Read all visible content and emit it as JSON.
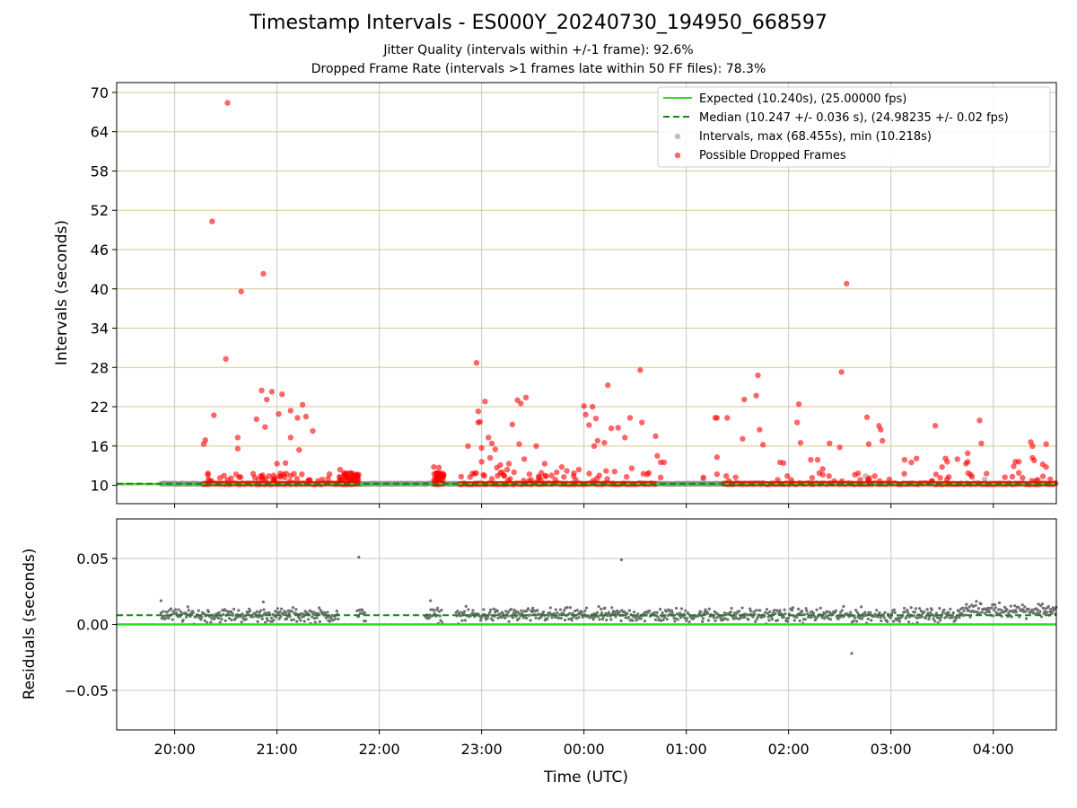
{
  "title": "Timestamp Intervals - ES000Y_20240730_194950_668597",
  "subtitle_lines": [
    "Jitter Quality (intervals within +/-1 frame): 92.6%",
    "Dropped Frame Rate (intervals >1 frames late within 50 FF files): 78.3%"
  ],
  "colors": {
    "expected": "#22dd22",
    "median": "#118811",
    "intervals": "#8a8a8a",
    "dropped": "#ff0000",
    "hgrid_top": "#d8c690",
    "grid": "#c8c8c8"
  },
  "chart_data": [
    {
      "type": "scatter",
      "name": "intervals",
      "ylabel": "Intervals (seconds)",
      "xlim": [
        "19:26",
        "04:37"
      ],
      "ylim": [
        7.2,
        71.5
      ],
      "yticks": [
        10,
        16,
        22,
        28,
        34,
        40,
        46,
        52,
        58,
        64,
        70
      ],
      "ytick_labels": [
        "10",
        "16",
        "22",
        "28",
        "34",
        "40",
        "46",
        "52",
        "58",
        "64",
        "70"
      ],
      "xticks": [
        "20:00",
        "21:00",
        "22:00",
        "23:00",
        "00:00",
        "01:00",
        "02:00",
        "03:00",
        "04:00"
      ],
      "grid": true,
      "legend_position": "top-right",
      "legend": [
        "Expected (10.240s), (25.00000 fps)",
        "Median (10.247 +/- 0.036 s), (24.98235 +/- 0.02 fps)",
        "Intervals, max (68.455s), min (10.218s)",
        "Possible Dropped Frames"
      ],
      "expected_interval": 10.24,
      "median_interval": 10.247,
      "baseline_intervals": [
        {
          "from": "19:52",
          "to": "20:18"
        },
        {
          "from": "21:34",
          "to": "22:27"
        },
        {
          "from": "22:27",
          "to": "22:50"
        },
        {
          "from": "00:42",
          "to": "01:18"
        },
        {
          "from": "01:18",
          "to": "01:30"
        }
      ],
      "dropped_baseline": [
        {
          "from": "20:17",
          "to": "21:36"
        },
        {
          "from": "21:36",
          "to": "21:48"
        },
        {
          "from": "22:32",
          "to": "22:38"
        },
        {
          "from": "22:47",
          "to": "00:42"
        },
        {
          "from": "01:22",
          "to": "04:37"
        }
      ],
      "interval_points": [
        {
          "x": "01:10",
          "y": 11.0
        },
        {
          "x": "02:45",
          "y": 11.4
        },
        {
          "x": "03:55",
          "y": 10.9
        }
      ],
      "dropped_points": [
        {
          "x": "20:17",
          "y": 16.3
        },
        {
          "x": "20:18",
          "y": 16.9
        },
        {
          "x": "20:22",
          "y": 50.3
        },
        {
          "x": "20:23",
          "y": 20.7
        },
        {
          "x": "20:31",
          "y": 68.4
        },
        {
          "x": "20:30",
          "y": 29.3
        },
        {
          "x": "20:37",
          "y": 15.6
        },
        {
          "x": "20:37",
          "y": 17.3
        },
        {
          "x": "20:39",
          "y": 39.6
        },
        {
          "x": "20:47",
          "y": 11.2
        },
        {
          "x": "20:48",
          "y": 20.1
        },
        {
          "x": "20:51",
          "y": 24.5
        },
        {
          "x": "20:52",
          "y": 42.3
        },
        {
          "x": "20:53",
          "y": 18.9
        },
        {
          "x": "20:54",
          "y": 23.1
        },
        {
          "x": "20:57",
          "y": 24.3
        },
        {
          "x": "20:58",
          "y": 11.5
        },
        {
          "x": "21:00",
          "y": 13.3
        },
        {
          "x": "21:01",
          "y": 20.9
        },
        {
          "x": "21:02",
          "y": 11.8
        },
        {
          "x": "21:03",
          "y": 23.9
        },
        {
          "x": "21:05",
          "y": 13.4
        },
        {
          "x": "21:08",
          "y": 21.4
        },
        {
          "x": "21:08",
          "y": 17.3
        },
        {
          "x": "21:12",
          "y": 20.3
        },
        {
          "x": "21:15",
          "y": 22.3
        },
        {
          "x": "21:17",
          "y": 20.5
        },
        {
          "x": "21:13",
          "y": 15.4
        },
        {
          "x": "21:21",
          "y": 18.3
        },
        {
          "x": "21:37",
          "y": 12.4
        },
        {
          "x": "22:32",
          "y": 12.8
        },
        {
          "x": "22:35",
          "y": 12.7
        },
        {
          "x": "22:52",
          "y": 16.0
        },
        {
          "x": "22:57",
          "y": 28.7
        },
        {
          "x": "22:58",
          "y": 21.3
        },
        {
          "x": "22:58",
          "y": 19.6
        },
        {
          "x": "22:59",
          "y": 19.7
        },
        {
          "x": "23:00",
          "y": 15.7
        },
        {
          "x": "23:00",
          "y": 13.6
        },
        {
          "x": "23:01",
          "y": 11.6
        },
        {
          "x": "23:02",
          "y": 22.8
        },
        {
          "x": "23:04",
          "y": 17.3
        },
        {
          "x": "23:05",
          "y": 14.2
        },
        {
          "x": "23:06",
          "y": 11.0
        },
        {
          "x": "23:06",
          "y": 16.4
        },
        {
          "x": "23:08",
          "y": 15.5
        },
        {
          "x": "23:09",
          "y": 12.7
        },
        {
          "x": "23:11",
          "y": 13.1
        },
        {
          "x": "23:12",
          "y": 12.0
        },
        {
          "x": "23:13",
          "y": 11.5
        },
        {
          "x": "23:15",
          "y": 12.4
        },
        {
          "x": "23:16",
          "y": 13.3
        },
        {
          "x": "23:18",
          "y": 19.3
        },
        {
          "x": "23:19",
          "y": 12.0
        },
        {
          "x": "23:21",
          "y": 23.0
        },
        {
          "x": "23:22",
          "y": 16.3
        },
        {
          "x": "23:23",
          "y": 22.5
        },
        {
          "x": "23:25",
          "y": 14.0
        },
        {
          "x": "23:26",
          "y": 23.4
        },
        {
          "x": "23:28",
          "y": 11.7
        },
        {
          "x": "23:32",
          "y": 16.0
        },
        {
          "x": "23:35",
          "y": 11.9
        },
        {
          "x": "23:37",
          "y": 13.3
        },
        {
          "x": "23:41",
          "y": 11.5
        },
        {
          "x": "23:44",
          "y": 12.0
        },
        {
          "x": "23:47",
          "y": 12.8
        },
        {
          "x": "23:50",
          "y": 12.2
        },
        {
          "x": "23:54",
          "y": 11.4
        },
        {
          "x": "23:57",
          "y": 12.4
        },
        {
          "x": "00:00",
          "y": 22.1
        },
        {
          "x": "00:01",
          "y": 20.8
        },
        {
          "x": "00:03",
          "y": 19.2
        },
        {
          "x": "00:05",
          "y": 22.0
        },
        {
          "x": "00:06",
          "y": 16.0
        },
        {
          "x": "00:07",
          "y": 20.2
        },
        {
          "x": "00:08",
          "y": 16.8
        },
        {
          "x": "00:09",
          "y": 11.5
        },
        {
          "x": "00:12",
          "y": 16.5
        },
        {
          "x": "00:13",
          "y": 12.2
        },
        {
          "x": "00:14",
          "y": 25.3
        },
        {
          "x": "00:16",
          "y": 18.7
        },
        {
          "x": "00:18",
          "y": 12.1
        },
        {
          "x": "00:20",
          "y": 18.8
        },
        {
          "x": "00:24",
          "y": 17.3
        },
        {
          "x": "00:25",
          "y": 11.3
        },
        {
          "x": "00:27",
          "y": 20.3
        },
        {
          "x": "00:28",
          "y": 12.6
        },
        {
          "x": "00:33",
          "y": 27.6
        },
        {
          "x": "00:34",
          "y": 19.6
        },
        {
          "x": "00:38",
          "y": 11.9
        },
        {
          "x": "00:42",
          "y": 17.5
        },
        {
          "x": "00:43",
          "y": 14.5
        },
        {
          "x": "00:45",
          "y": 13.5
        },
        {
          "x": "00:45",
          "y": 11.2
        },
        {
          "x": "00:47",
          "y": 13.5
        },
        {
          "x": "01:10",
          "y": 11.2
        },
        {
          "x": "01:17",
          "y": 20.3
        },
        {
          "x": "01:18",
          "y": 20.3
        },
        {
          "x": "01:18",
          "y": 14.3
        },
        {
          "x": "01:18",
          "y": 11.7
        },
        {
          "x": "01:24",
          "y": 20.3
        },
        {
          "x": "01:33",
          "y": 17.1
        },
        {
          "x": "01:34",
          "y": 23.1
        },
        {
          "x": "01:41",
          "y": 23.7
        },
        {
          "x": "01:42",
          "y": 26.8
        },
        {
          "x": "01:43",
          "y": 18.5
        },
        {
          "x": "01:45",
          "y": 16.2
        },
        {
          "x": "01:55",
          "y": 13.5
        },
        {
          "x": "01:57",
          "y": 13.4
        },
        {
          "x": "02:05",
          "y": 19.6
        },
        {
          "x": "02:06",
          "y": 22.4
        },
        {
          "x": "02:07",
          "y": 16.5
        },
        {
          "x": "02:13",
          "y": 13.9
        },
        {
          "x": "02:17",
          "y": 13.9
        },
        {
          "x": "02:20",
          "y": 12.5
        },
        {
          "x": "02:24",
          "y": 16.4
        },
        {
          "x": "02:30",
          "y": 15.8
        },
        {
          "x": "02:31",
          "y": 27.3
        },
        {
          "x": "02:34",
          "y": 40.8
        },
        {
          "x": "02:46",
          "y": 20.4
        },
        {
          "x": "02:47",
          "y": 16.3
        },
        {
          "x": "02:53",
          "y": 19.1
        },
        {
          "x": "02:54",
          "y": 18.5
        },
        {
          "x": "02:55",
          "y": 16.8
        },
        {
          "x": "02:59",
          "y": 10.9
        },
        {
          "x": "03:08",
          "y": 13.9
        },
        {
          "x": "03:12",
          "y": 13.5
        },
        {
          "x": "03:15",
          "y": 14.1
        },
        {
          "x": "03:26",
          "y": 19.1
        },
        {
          "x": "03:30",
          "y": 12.8
        },
        {
          "x": "03:32",
          "y": 14.1
        },
        {
          "x": "03:33",
          "y": 13.6
        },
        {
          "x": "03:39",
          "y": 14.0
        },
        {
          "x": "03:44",
          "y": 13.3
        },
        {
          "x": "03:45",
          "y": 13.6
        },
        {
          "x": "03:45",
          "y": 14.9
        },
        {
          "x": "03:52",
          "y": 19.9
        },
        {
          "x": "03:53",
          "y": 16.4
        },
        {
          "x": "04:12",
          "y": 12.9
        },
        {
          "x": "04:13",
          "y": 13.6
        },
        {
          "x": "04:15",
          "y": 13.6
        },
        {
          "x": "04:15",
          "y": 11.9
        },
        {
          "x": "04:22",
          "y": 16.6
        },
        {
          "x": "04:23",
          "y": 16.0
        },
        {
          "x": "04:23",
          "y": 14.2
        },
        {
          "x": "04:24",
          "y": 13.8
        },
        {
          "x": "04:29",
          "y": 13.2
        },
        {
          "x": "04:31",
          "y": 16.3
        },
        {
          "x": "04:31",
          "y": 12.8
        }
      ]
    },
    {
      "type": "scatter",
      "name": "residuals",
      "xlabel": "Time (UTC)",
      "ylabel": "Residuals (seconds)",
      "xlim": [
        "19:26",
        "04:37"
      ],
      "ylim": [
        -0.08,
        0.08
      ],
      "yticks": [
        -0.05,
        0.0,
        0.05
      ],
      "ytick_labels": [
        "−0.05",
        "0.00",
        "0.05"
      ],
      "xticks": [
        "20:00",
        "21:00",
        "22:00",
        "23:00",
        "00:00",
        "01:00",
        "02:00",
        "03:00",
        "04:00"
      ],
      "grid": true,
      "expected_residual": 0.0,
      "median_residual": 0.007,
      "baseline_residual": 0.007,
      "residual_spread": 0.004,
      "residual_coverage": [
        {
          "from": "19:52",
          "to": "21:36"
        },
        {
          "from": "21:47",
          "to": "21:52"
        },
        {
          "from": "22:27",
          "to": "22:37"
        },
        {
          "from": "22:45",
          "to": "04:37"
        }
      ],
      "outliers": [
        {
          "x": "21:48",
          "y": 0.051
        },
        {
          "x": "00:22",
          "y": 0.049
        },
        {
          "x": "02:37",
          "y": -0.022
        },
        {
          "x": "19:52",
          "y": 0.018
        },
        {
          "x": "20:52",
          "y": 0.017
        },
        {
          "x": "22:30",
          "y": 0.018
        }
      ]
    }
  ]
}
